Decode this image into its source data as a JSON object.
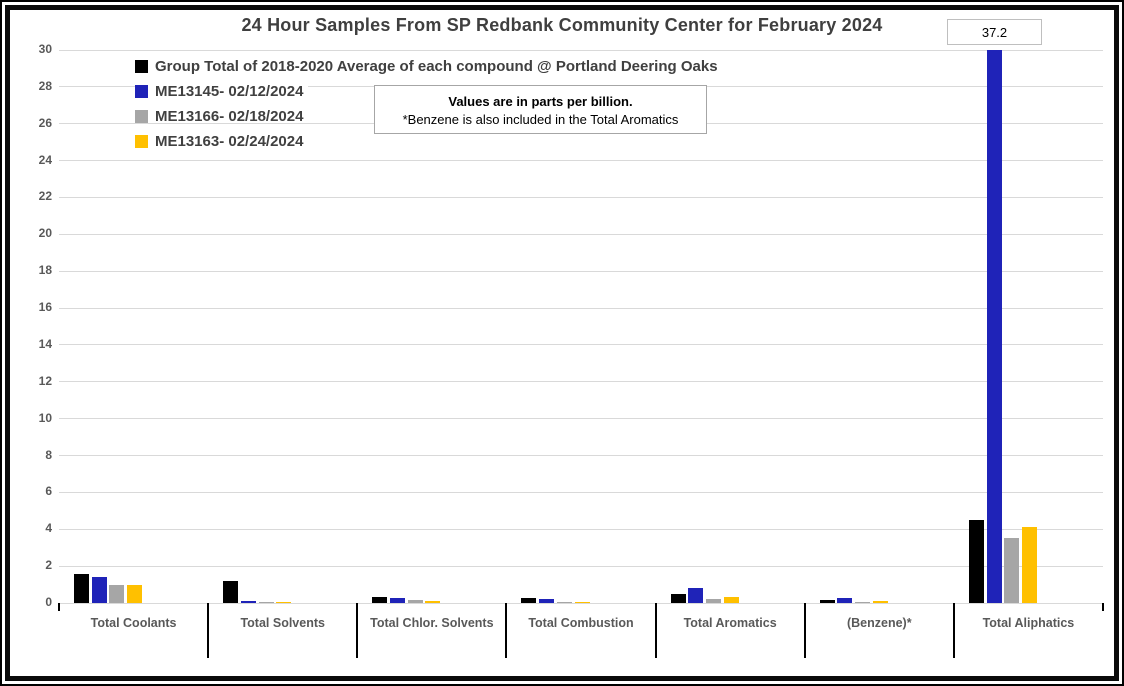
{
  "chart": {
    "title": "24 Hour Samples From SP Redbank Community Center for February 2024",
    "max_bar_label": "37.2",
    "note_line1": "Values are in parts per billion.",
    "note_line2": "*Benzene is also included in the Total Aromatics"
  },
  "chart_data": {
    "type": "bar",
    "title": "24 Hour Samples From SP Redbank Community Center for February 2024",
    "unit": "parts per billion",
    "categories": [
      "Total Coolants",
      "Total Solvents",
      "Total Chlor. Solvents",
      "Total Combustion",
      "Total Aromatics",
      "(Benzene)*",
      "Total Aliphatics"
    ],
    "series": [
      {
        "name": "Group Total of 2018-2020 Average of each compound @ Portland Deering Oaks",
        "color": "#000000",
        "values": [
          1.55,
          1.2,
          0.35,
          0.25,
          0.5,
          0.15,
          4.5
        ]
      },
      {
        "name": "ME13145- 02/12/2024",
        "color": "#1f23b8",
        "values": [
          1.4,
          0.12,
          0.25,
          0.2,
          0.8,
          0.25,
          37.2
        ]
      },
      {
        "name": "ME13166- 02/18/2024",
        "color": "#a6a6a6",
        "values": [
          0.95,
          0.08,
          0.15,
          0.06,
          0.2,
          0.06,
          3.5
        ]
      },
      {
        "name": "ME13163- 02/24/2024",
        "color": "#ffc000",
        "values": [
          0.95,
          0.08,
          0.1,
          0.07,
          0.3,
          0.1,
          4.1
        ]
      }
    ],
    "ylim": [
      0,
      30
    ],
    "ytick_step": 2,
    "grid": true,
    "legend_position": "top-left",
    "annotations": [
      {
        "text": "37.2",
        "target": "ME13145- 02/12/2024 bar in Total Aliphatics, clipped at axis max 30"
      },
      {
        "text": "Values are in parts per billion."
      },
      {
        "text": "*Benzene is also included in the Total Aromatics"
      }
    ]
  },
  "colors": {
    "gridline": "#d9d9d9",
    "axis_text": "#595959",
    "title_text": "#3f3f3f",
    "legend_text": "#404040",
    "chart_border": "#000000",
    "note_border": "#a6a6a6",
    "max_label_border": "#bfbfbf"
  }
}
